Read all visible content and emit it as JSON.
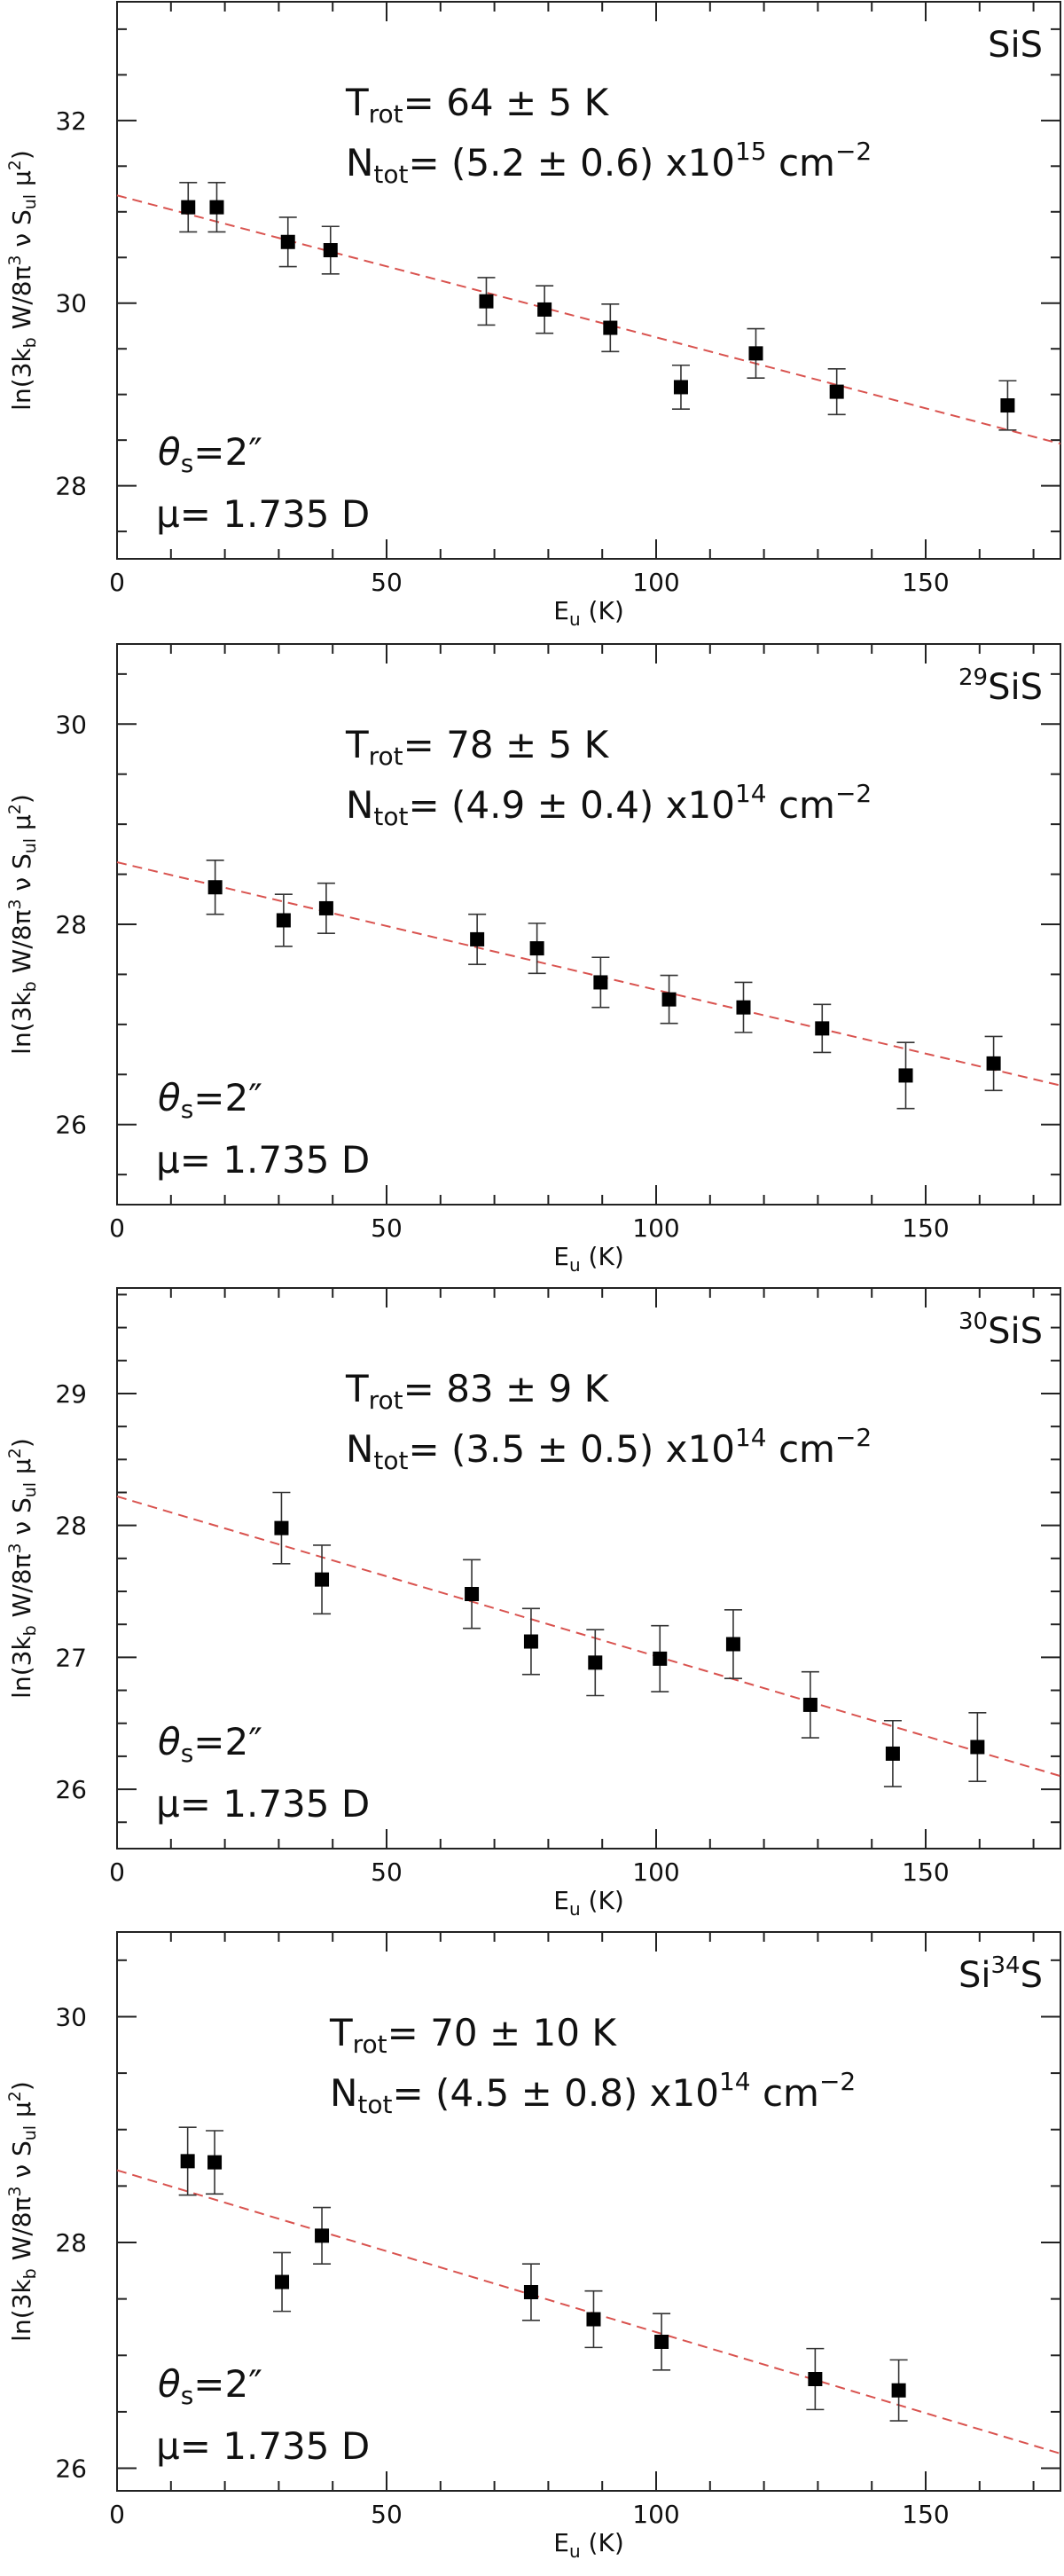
{
  "figure": {
    "fit_color": "#d9534f",
    "marker_color": "#000000"
  },
  "chart_data": [
    {
      "type": "scatter",
      "species": {
        "prefix": "",
        "sup": "",
        "suffix": "SiS"
      },
      "xlabel": {
        "base": "E",
        "sub": "u",
        "unit": " (K)"
      },
      "ylabel": "ln(3k_b W/8π³ ν S_ul μ²)",
      "xlim": [
        0,
        175
      ],
      "ylim": [
        27.2,
        33.3
      ],
      "xticks": [
        0,
        50,
        100,
        150
      ],
      "yticks": [
        28,
        30,
        32
      ],
      "trot": {
        "label": "T",
        "sub": "rot",
        "text": "=  64  ±  5  K"
      },
      "ntot": {
        "label": "N",
        "sub": "tot",
        "text": "=  (5.2  ±  0.6)  x10",
        "exp": "15",
        "unit": " cm",
        "unit_exp": "−2"
      },
      "theta": {
        "text": "θ",
        "sub": "s",
        "rest": "=2″"
      },
      "mu": {
        "text": "μ=  1.735  D"
      },
      "fit": {
        "x": [
          0,
          175
        ],
        "y": [
          31.18,
          28.46
        ]
      },
      "points": [
        {
          "x": 13.2,
          "y": 31.05,
          "err": 0.27
        },
        {
          "x": 18.5,
          "y": 31.05,
          "err": 0.27
        },
        {
          "x": 31.7,
          "y": 30.67,
          "err": 0.27
        },
        {
          "x": 39.6,
          "y": 30.58,
          "err": 0.26
        },
        {
          "x": 68.5,
          "y": 30.02,
          "err": 0.26
        },
        {
          "x": 79.3,
          "y": 29.93,
          "err": 0.26
        },
        {
          "x": 91.5,
          "y": 29.73,
          "err": 0.26
        },
        {
          "x": 104.6,
          "y": 29.08,
          "err": 0.24
        },
        {
          "x": 118.5,
          "y": 29.45,
          "err": 0.27
        },
        {
          "x": 133.5,
          "y": 29.03,
          "err": 0.25
        },
        {
          "x": 165.2,
          "y": 28.88,
          "err": 0.27
        }
      ]
    },
    {
      "type": "scatter",
      "species": {
        "prefix": "",
        "sup": "29",
        "suffix": "SiS"
      },
      "xlabel": {
        "base": "E",
        "sub": "u",
        "unit": " (K)"
      },
      "ylabel": "ln(3k_b W/8π³ ν S_ul μ²)",
      "xlim": [
        0,
        175
      ],
      "ylim": [
        25.2,
        30.8
      ],
      "xticks": [
        0,
        50,
        100,
        150
      ],
      "yticks": [
        26,
        28,
        30
      ],
      "trot": {
        "label": "T",
        "sub": "rot",
        "text": "=  78  ±  5  K"
      },
      "ntot": {
        "label": "N",
        "sub": "tot",
        "text": "=  (4.9  ±  0.4)  x10",
        "exp": "14",
        "unit": " cm",
        "unit_exp": "−2"
      },
      "theta": {
        "text": "θ",
        "sub": "s",
        "rest": "=2″"
      },
      "mu": {
        "text": "μ=  1.735  D"
      },
      "fit": {
        "x": [
          0,
          175
        ],
        "y": [
          28.62,
          26.39
        ]
      },
      "points": [
        {
          "x": 18.2,
          "y": 28.37,
          "err": 0.27
        },
        {
          "x": 30.9,
          "y": 28.04,
          "err": 0.26
        },
        {
          "x": 38.8,
          "y": 28.16,
          "err": 0.25
        },
        {
          "x": 66.8,
          "y": 27.85,
          "err": 0.25
        },
        {
          "x": 77.9,
          "y": 27.76,
          "err": 0.25
        },
        {
          "x": 89.7,
          "y": 27.42,
          "err": 0.25
        },
        {
          "x": 102.4,
          "y": 27.25,
          "err": 0.24
        },
        {
          "x": 116.2,
          "y": 27.17,
          "err": 0.25
        },
        {
          "x": 130.8,
          "y": 26.96,
          "err": 0.24
        },
        {
          "x": 146.3,
          "y": 26.49,
          "err": 0.33
        },
        {
          "x": 162.6,
          "y": 26.61,
          "err": 0.27
        }
      ]
    },
    {
      "type": "scatter",
      "species": {
        "prefix": "",
        "sup": "30",
        "suffix": "SiS"
      },
      "xlabel": {
        "base": "E",
        "sub": "u",
        "unit": " (K)"
      },
      "ylabel": "ln(3k_b W/8π³ ν S_ul μ²)",
      "xlim": [
        0,
        175
      ],
      "ylim": [
        25.55,
        29.8
      ],
      "xticks": [
        0,
        50,
        100,
        150
      ],
      "yticks": [
        26,
        27,
        28,
        29
      ],
      "trot": {
        "label": "T",
        "sub": "rot",
        "text": "=  83  ±  9  K"
      },
      "ntot": {
        "label": "N",
        "sub": "tot",
        "text": "=  (3.5  ±  0.5)  x10",
        "exp": "14",
        "unit": " cm",
        "unit_exp": "−2"
      },
      "theta": {
        "text": "θ",
        "sub": "s",
        "rest": "=2″"
      },
      "mu": {
        "text": "μ=  1.735  D"
      },
      "fit": {
        "x": [
          0,
          175
        ],
        "y": [
          28.22,
          26.1
        ]
      },
      "points": [
        {
          "x": 30.5,
          "y": 27.98,
          "err": 0.27
        },
        {
          "x": 38.0,
          "y": 27.59,
          "err": 0.26
        },
        {
          "x": 65.8,
          "y": 27.48,
          "err": 0.26
        },
        {
          "x": 76.8,
          "y": 27.12,
          "err": 0.25
        },
        {
          "x": 88.7,
          "y": 26.96,
          "err": 0.25
        },
        {
          "x": 100.7,
          "y": 26.99,
          "err": 0.25
        },
        {
          "x": 114.3,
          "y": 27.1,
          "err": 0.26
        },
        {
          "x": 128.6,
          "y": 26.64,
          "err": 0.25
        },
        {
          "x": 143.9,
          "y": 26.27,
          "err": 0.25
        },
        {
          "x": 159.6,
          "y": 26.32,
          "err": 0.26
        }
      ]
    },
    {
      "type": "scatter",
      "species": {
        "prefix": "Si",
        "sup": "34",
        "suffix": "S"
      },
      "xlabel": {
        "base": "E",
        "sub": "u",
        "unit": " (K)"
      },
      "ylabel": "ln(3k_b W/8π³ ν S_ul μ²)",
      "xlim": [
        0,
        175
      ],
      "ylim": [
        25.8,
        30.75
      ],
      "xticks": [
        0,
        50,
        100,
        150
      ],
      "yticks": [
        26,
        28,
        30
      ],
      "trot": {
        "label": "T",
        "sub": "rot",
        "text": "=  70  ±  10  K"
      },
      "ntot": {
        "label": "N",
        "sub": "tot",
        "text": "=  (4.5  ±  0.8)  x10",
        "exp": "14",
        "unit": " cm",
        "unit_exp": "−2"
      },
      "theta": {
        "text": "θ",
        "sub": "s",
        "rest": "=2″"
      },
      "mu": {
        "text": "μ=  1.735  D"
      },
      "fit": {
        "x": [
          0,
          175
        ],
        "y": [
          28.64,
          26.13
        ]
      },
      "points": [
        {
          "x": 13.1,
          "y": 28.72,
          "err": 0.3
        },
        {
          "x": 18.1,
          "y": 28.71,
          "err": 0.28
        },
        {
          "x": 30.6,
          "y": 27.65,
          "err": 0.26
        },
        {
          "x": 38.0,
          "y": 28.06,
          "err": 0.25
        },
        {
          "x": 76.8,
          "y": 27.56,
          "err": 0.25
        },
        {
          "x": 88.4,
          "y": 27.32,
          "err": 0.25
        },
        {
          "x": 101.0,
          "y": 27.12,
          "err": 0.25
        },
        {
          "x": 129.5,
          "y": 26.79,
          "err": 0.27
        },
        {
          "x": 145.0,
          "y": 26.69,
          "err": 0.27
        }
      ]
    }
  ]
}
